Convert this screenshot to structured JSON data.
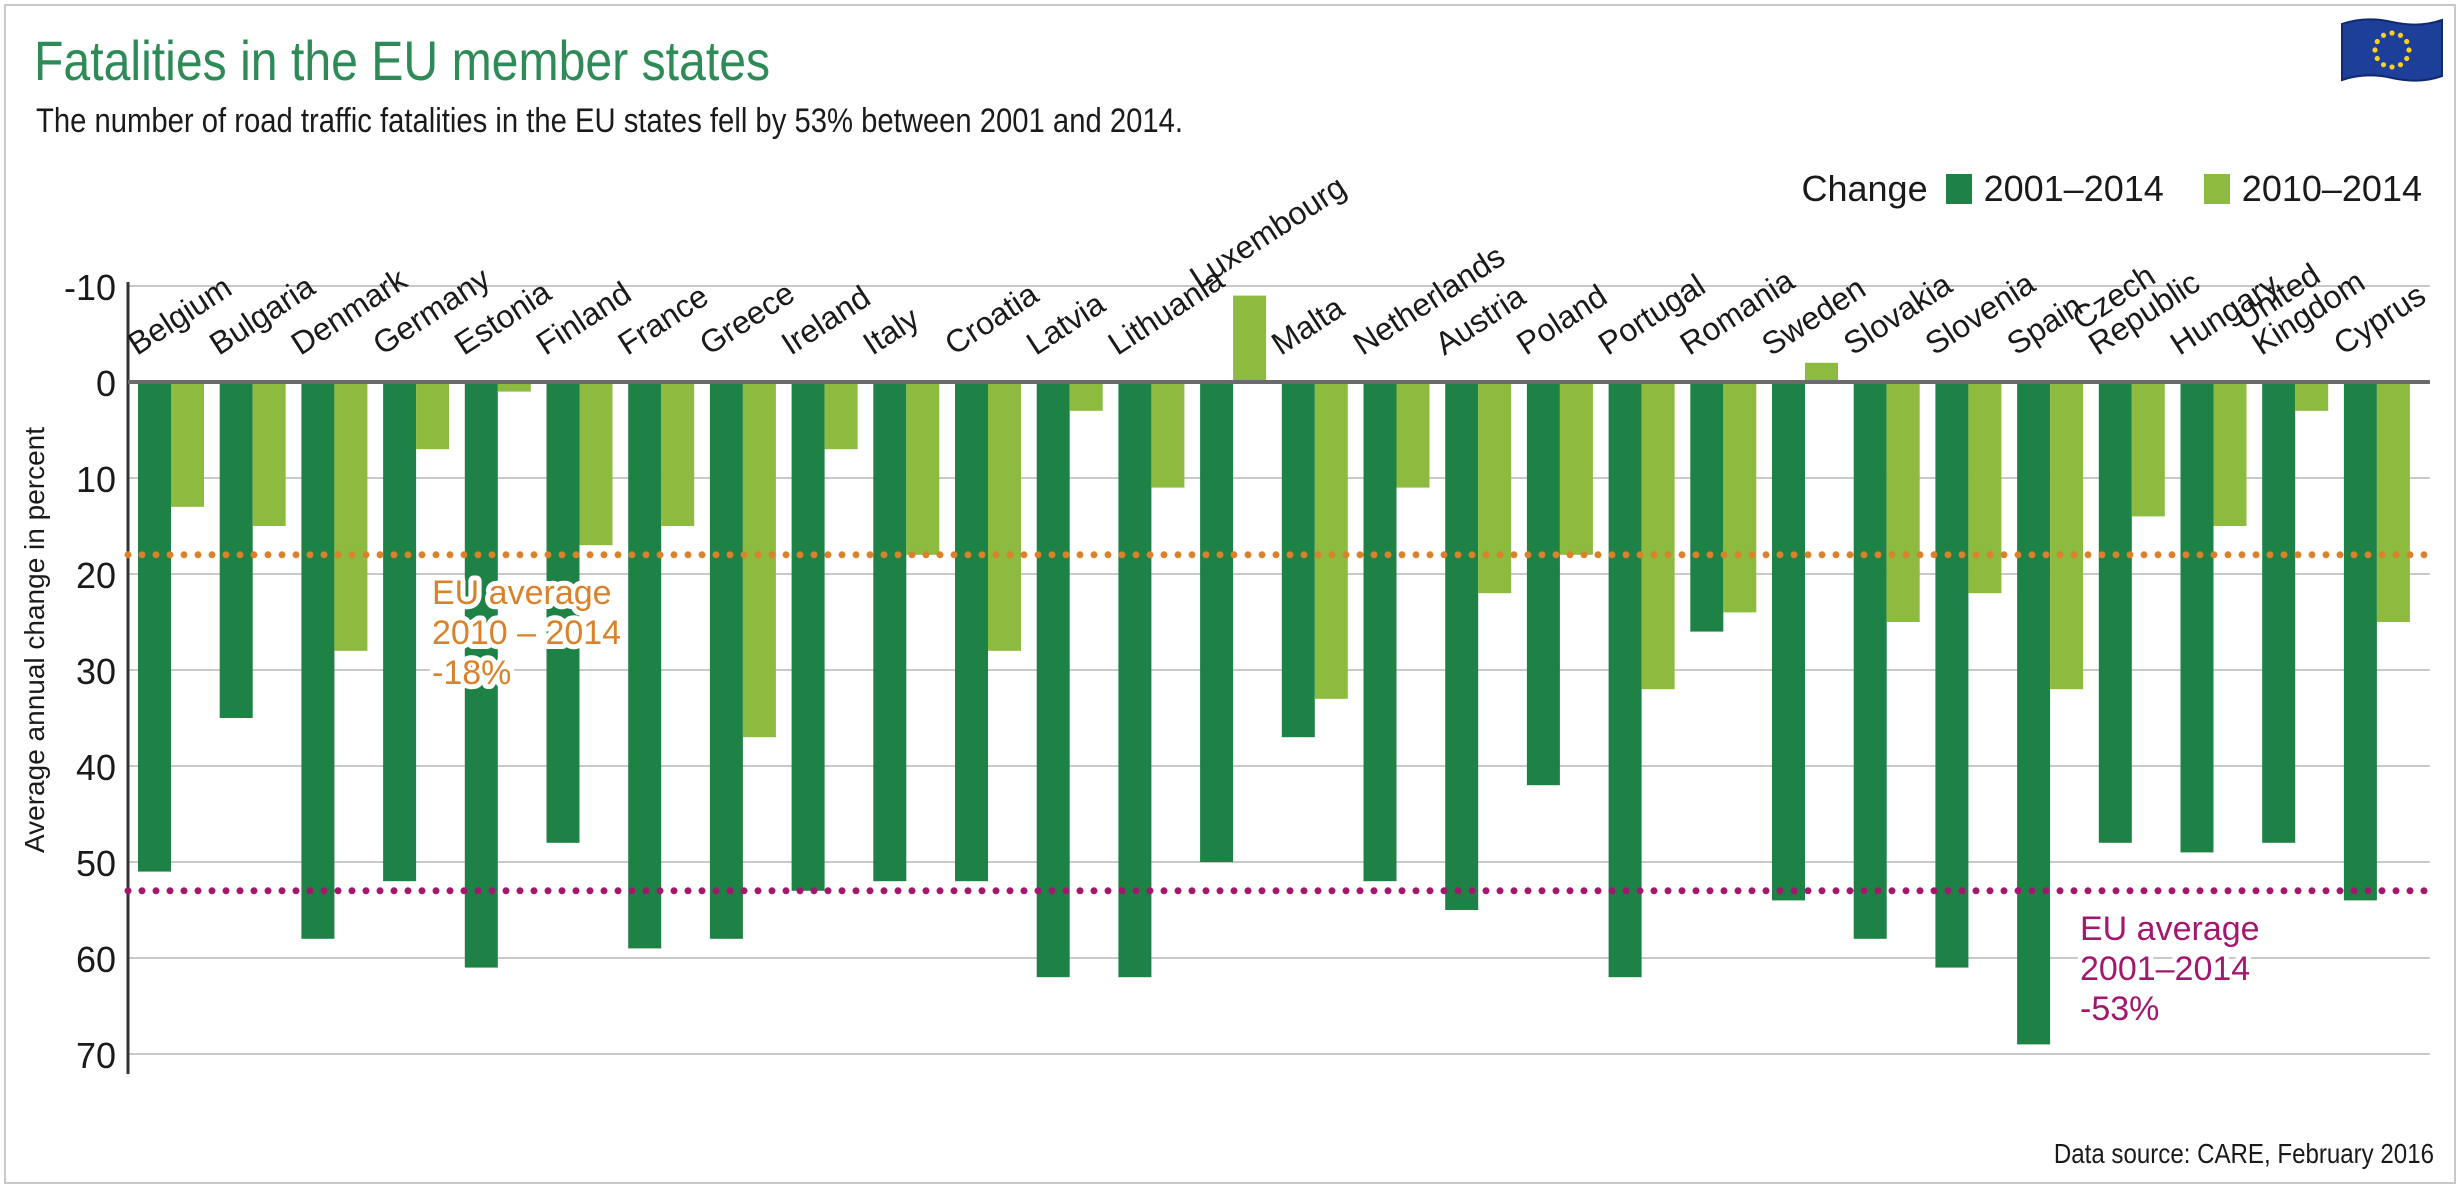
{
  "header": {
    "title": "Fatalities in the EU member states",
    "subtitle": "The number of road traffic fatalities in the EU states fell by 53% between 2001 and 2014."
  },
  "legend": {
    "label": "Change",
    "items": [
      {
        "label": "2001–2014",
        "color": "#1e8246"
      },
      {
        "label": "2010–2014",
        "color": "#8cbb3f"
      }
    ]
  },
  "source": "Data source: CARE, February 2016",
  "flag": {
    "icon": "eu-flag-icon"
  },
  "colors": {
    "dark": "#1e8246",
    "light": "#8cbb3f",
    "orange": "#d9822b",
    "magenta": "#a3176f",
    "grid": "#c8c8c8",
    "axis": "#333333"
  },
  "chart_data": {
    "type": "bar",
    "title": "Fatalities in the EU member states",
    "xlabel": "",
    "ylabel": "Average annual change in percent",
    "ylim": [
      -10,
      70
    ],
    "y_inverted": true,
    "yticks": [
      -10,
      0,
      10,
      20,
      30,
      40,
      50,
      60,
      70
    ],
    "grid": true,
    "legend_position": "top-right",
    "categories": [
      "Belgium",
      "Bulgaria",
      "Denmark",
      "Germany",
      "Estonia",
      "Finland",
      "France",
      "Greece",
      "Ireland",
      "Italy",
      "Croatia",
      "Latvia",
      "Lithuania",
      "Luxembourg",
      "Malta",
      "Netherlands",
      "Austria",
      "Poland",
      "Portugal",
      "Romania",
      "Sweden",
      "Slovakia",
      "Slovenia",
      "Spain",
      "Czech Republic",
      "Hungary",
      "United Kingdom",
      "Cyprus"
    ],
    "series": [
      {
        "name": "2001–2014",
        "values": [
          51,
          35,
          58,
          52,
          61,
          48,
          59,
          58,
          53,
          52,
          52,
          62,
          62,
          50,
          37,
          52,
          55,
          42,
          62,
          26,
          54,
          58,
          61,
          69,
          48,
          49,
          48,
          54
        ]
      },
      {
        "name": "2010–2014",
        "values": [
          13,
          15,
          28,
          7,
          1,
          17,
          15,
          37,
          7,
          18,
          28,
          3,
          11,
          -9,
          33,
          11,
          22,
          18,
          32,
          24,
          -2,
          25,
          22,
          32,
          14,
          15,
          3,
          25
        ]
      }
    ],
    "reference_lines": [
      {
        "name": "EU average 2010–2014",
        "value": 18,
        "label_lines": [
          "EU average",
          "2010 – 2014",
          "-18%"
        ]
      },
      {
        "name": "EU average 2001–2014",
        "value": 53,
        "label_lines": [
          "EU average",
          "2001–2014",
          "-53%"
        ]
      }
    ]
  }
}
